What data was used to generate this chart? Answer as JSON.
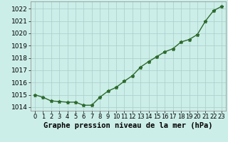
{
  "hours": [
    0,
    1,
    2,
    3,
    4,
    5,
    6,
    7,
    8,
    9,
    10,
    11,
    12,
    13,
    14,
    15,
    16,
    17,
    18,
    19,
    20,
    21,
    22,
    23
  ],
  "pressure": [
    1015.0,
    1014.8,
    1014.5,
    1014.45,
    1014.4,
    1014.4,
    1014.15,
    1014.15,
    1014.8,
    1015.3,
    1015.6,
    1016.1,
    1016.55,
    1017.25,
    1017.7,
    1018.1,
    1018.5,
    1018.75,
    1019.3,
    1019.5,
    1019.9,
    1021.0,
    1021.85,
    1022.2
  ],
  "line_color": "#2d6a2d",
  "marker": "*",
  "marker_size": 3.5,
  "background_color": "#cceee8",
  "grid_color": "#aacccc",
  "xlabel": "Graphe pression niveau de la mer (hPa)",
  "xlabel_fontsize": 7.5,
  "ylabel_fontsize": 6.5,
  "tick_fontsize": 6.0,
  "ylim": [
    1013.7,
    1022.6
  ],
  "yticks": [
    1014,
    1015,
    1016,
    1017,
    1018,
    1019,
    1020,
    1021,
    1022
  ],
  "line_width": 1.0
}
